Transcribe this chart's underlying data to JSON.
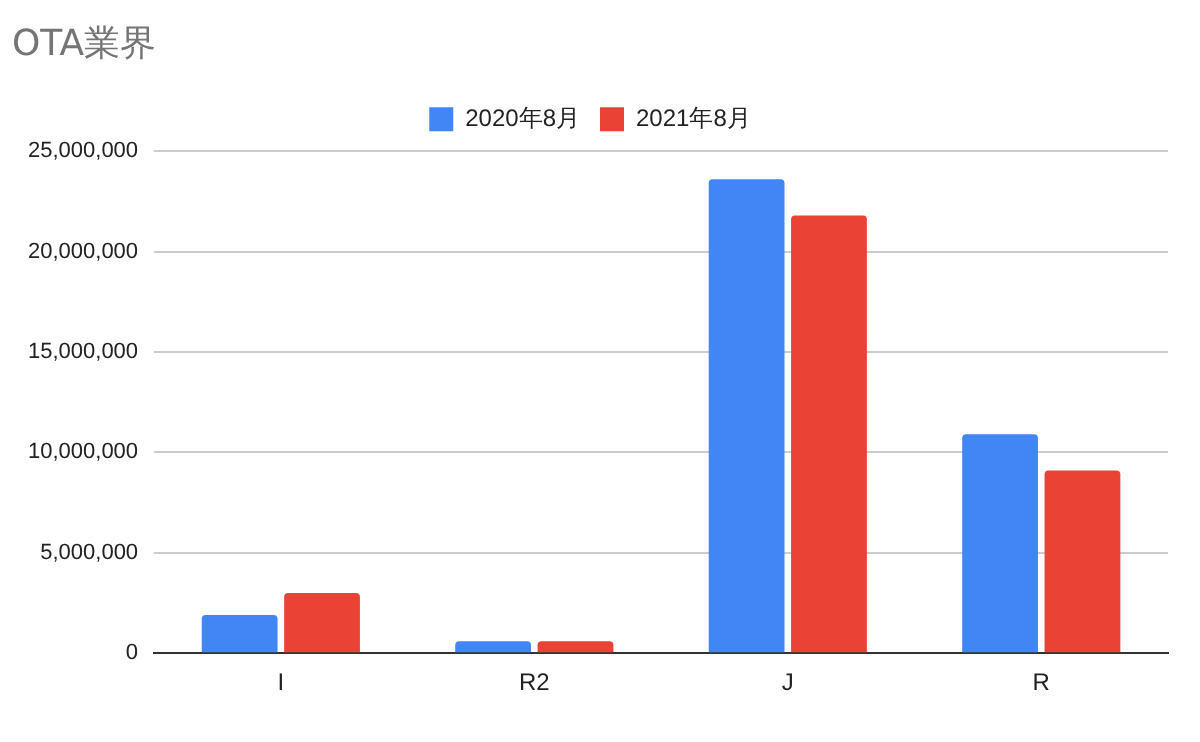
{
  "chart_data": {
    "type": "bar",
    "title": "OTA業界",
    "categories": [
      "I",
      "R2",
      "J",
      "R"
    ],
    "series": [
      {
        "name": "2020年8月",
        "color": "#4285f4",
        "values": [
          1900000,
          600000,
          23600000,
          10900000
        ]
      },
      {
        "name": "2021年8月",
        "color": "#ea4335",
        "values": [
          3000000,
          600000,
          21800000,
          9100000
        ]
      }
    ],
    "ylim": [
      0,
      25000000
    ],
    "yticks": [
      0,
      {
        "value": 5000000,
        "label": "5,000,000"
      },
      {
        "value": 10000000,
        "label": "10,000,000"
      },
      {
        "value": 15000000,
        "label": "15,000,000"
      },
      {
        "value": 20000000,
        "label": "20,000,000"
      },
      {
        "value": 25000000,
        "label": "25,000,000"
      }
    ],
    "grid": "y",
    "legend": "top"
  }
}
